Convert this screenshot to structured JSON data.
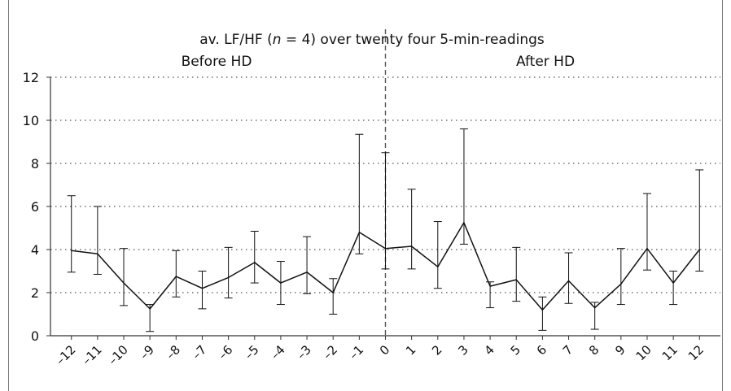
{
  "chart_data": {
    "type": "line",
    "title_prefix": "av. LF/HF (",
    "title_italic": "n",
    "title_suffix": " = 4) over twenty four 5-min-readings",
    "sections": [
      {
        "label": "Before HD"
      },
      {
        "label": "After HD"
      }
    ],
    "x": [
      -12,
      -11,
      -10,
      -9,
      -8,
      -7,
      -6,
      -5,
      -4,
      -3,
      -2,
      -1,
      0,
      1,
      2,
      3,
      4,
      5,
      6,
      7,
      8,
      9,
      10,
      11,
      12
    ],
    "x_tick_labels": [
      "–12",
      "–11",
      "–10",
      "–9",
      "–8",
      "–7",
      "–6",
      "–5",
      "–4",
      "–3",
      "–2",
      "–1",
      "0",
      "1",
      "2",
      "3",
      "4",
      "5",
      "6",
      "7",
      "8",
      "9",
      "10",
      "11",
      "12"
    ],
    "values": [
      3.95,
      3.8,
      2.45,
      1.25,
      2.75,
      2.2,
      2.7,
      3.4,
      2.45,
      2.95,
      2.0,
      4.8,
      4.05,
      4.15,
      3.2,
      5.25,
      2.3,
      2.6,
      1.2,
      2.55,
      1.3,
      2.4,
      4.05,
      2.45,
      4.0
    ],
    "error_upper": [
      6.5,
      6.0,
      4.05,
      1.45,
      3.95,
      3.0,
      4.1,
      4.85,
      3.45,
      4.6,
      2.65,
      9.35,
      8.5,
      6.8,
      5.3,
      9.6,
      2.5,
      4.1,
      1.8,
      3.85,
      1.55,
      4.05,
      6.6,
      3.0,
      7.7
    ],
    "error_lower": [
      2.95,
      2.85,
      1.4,
      0.2,
      1.8,
      1.25,
      1.75,
      2.45,
      1.45,
      1.95,
      1.0,
      3.8,
      3.1,
      3.1,
      2.2,
      4.25,
      1.3,
      1.6,
      0.25,
      1.5,
      0.3,
      1.45,
      3.05,
      1.45,
      3.0
    ],
    "y_ticks": [
      0,
      2,
      4,
      6,
      8,
      10,
      12
    ],
    "ylim": [
      0,
      12
    ],
    "xlim": [
      -12.8,
      12.8
    ],
    "divider_x": 0,
    "grid": "horizontal dotted",
    "colors": {
      "line": "#111111",
      "grid": "#555555",
      "divider": "#555555",
      "axis": "#333333"
    }
  }
}
